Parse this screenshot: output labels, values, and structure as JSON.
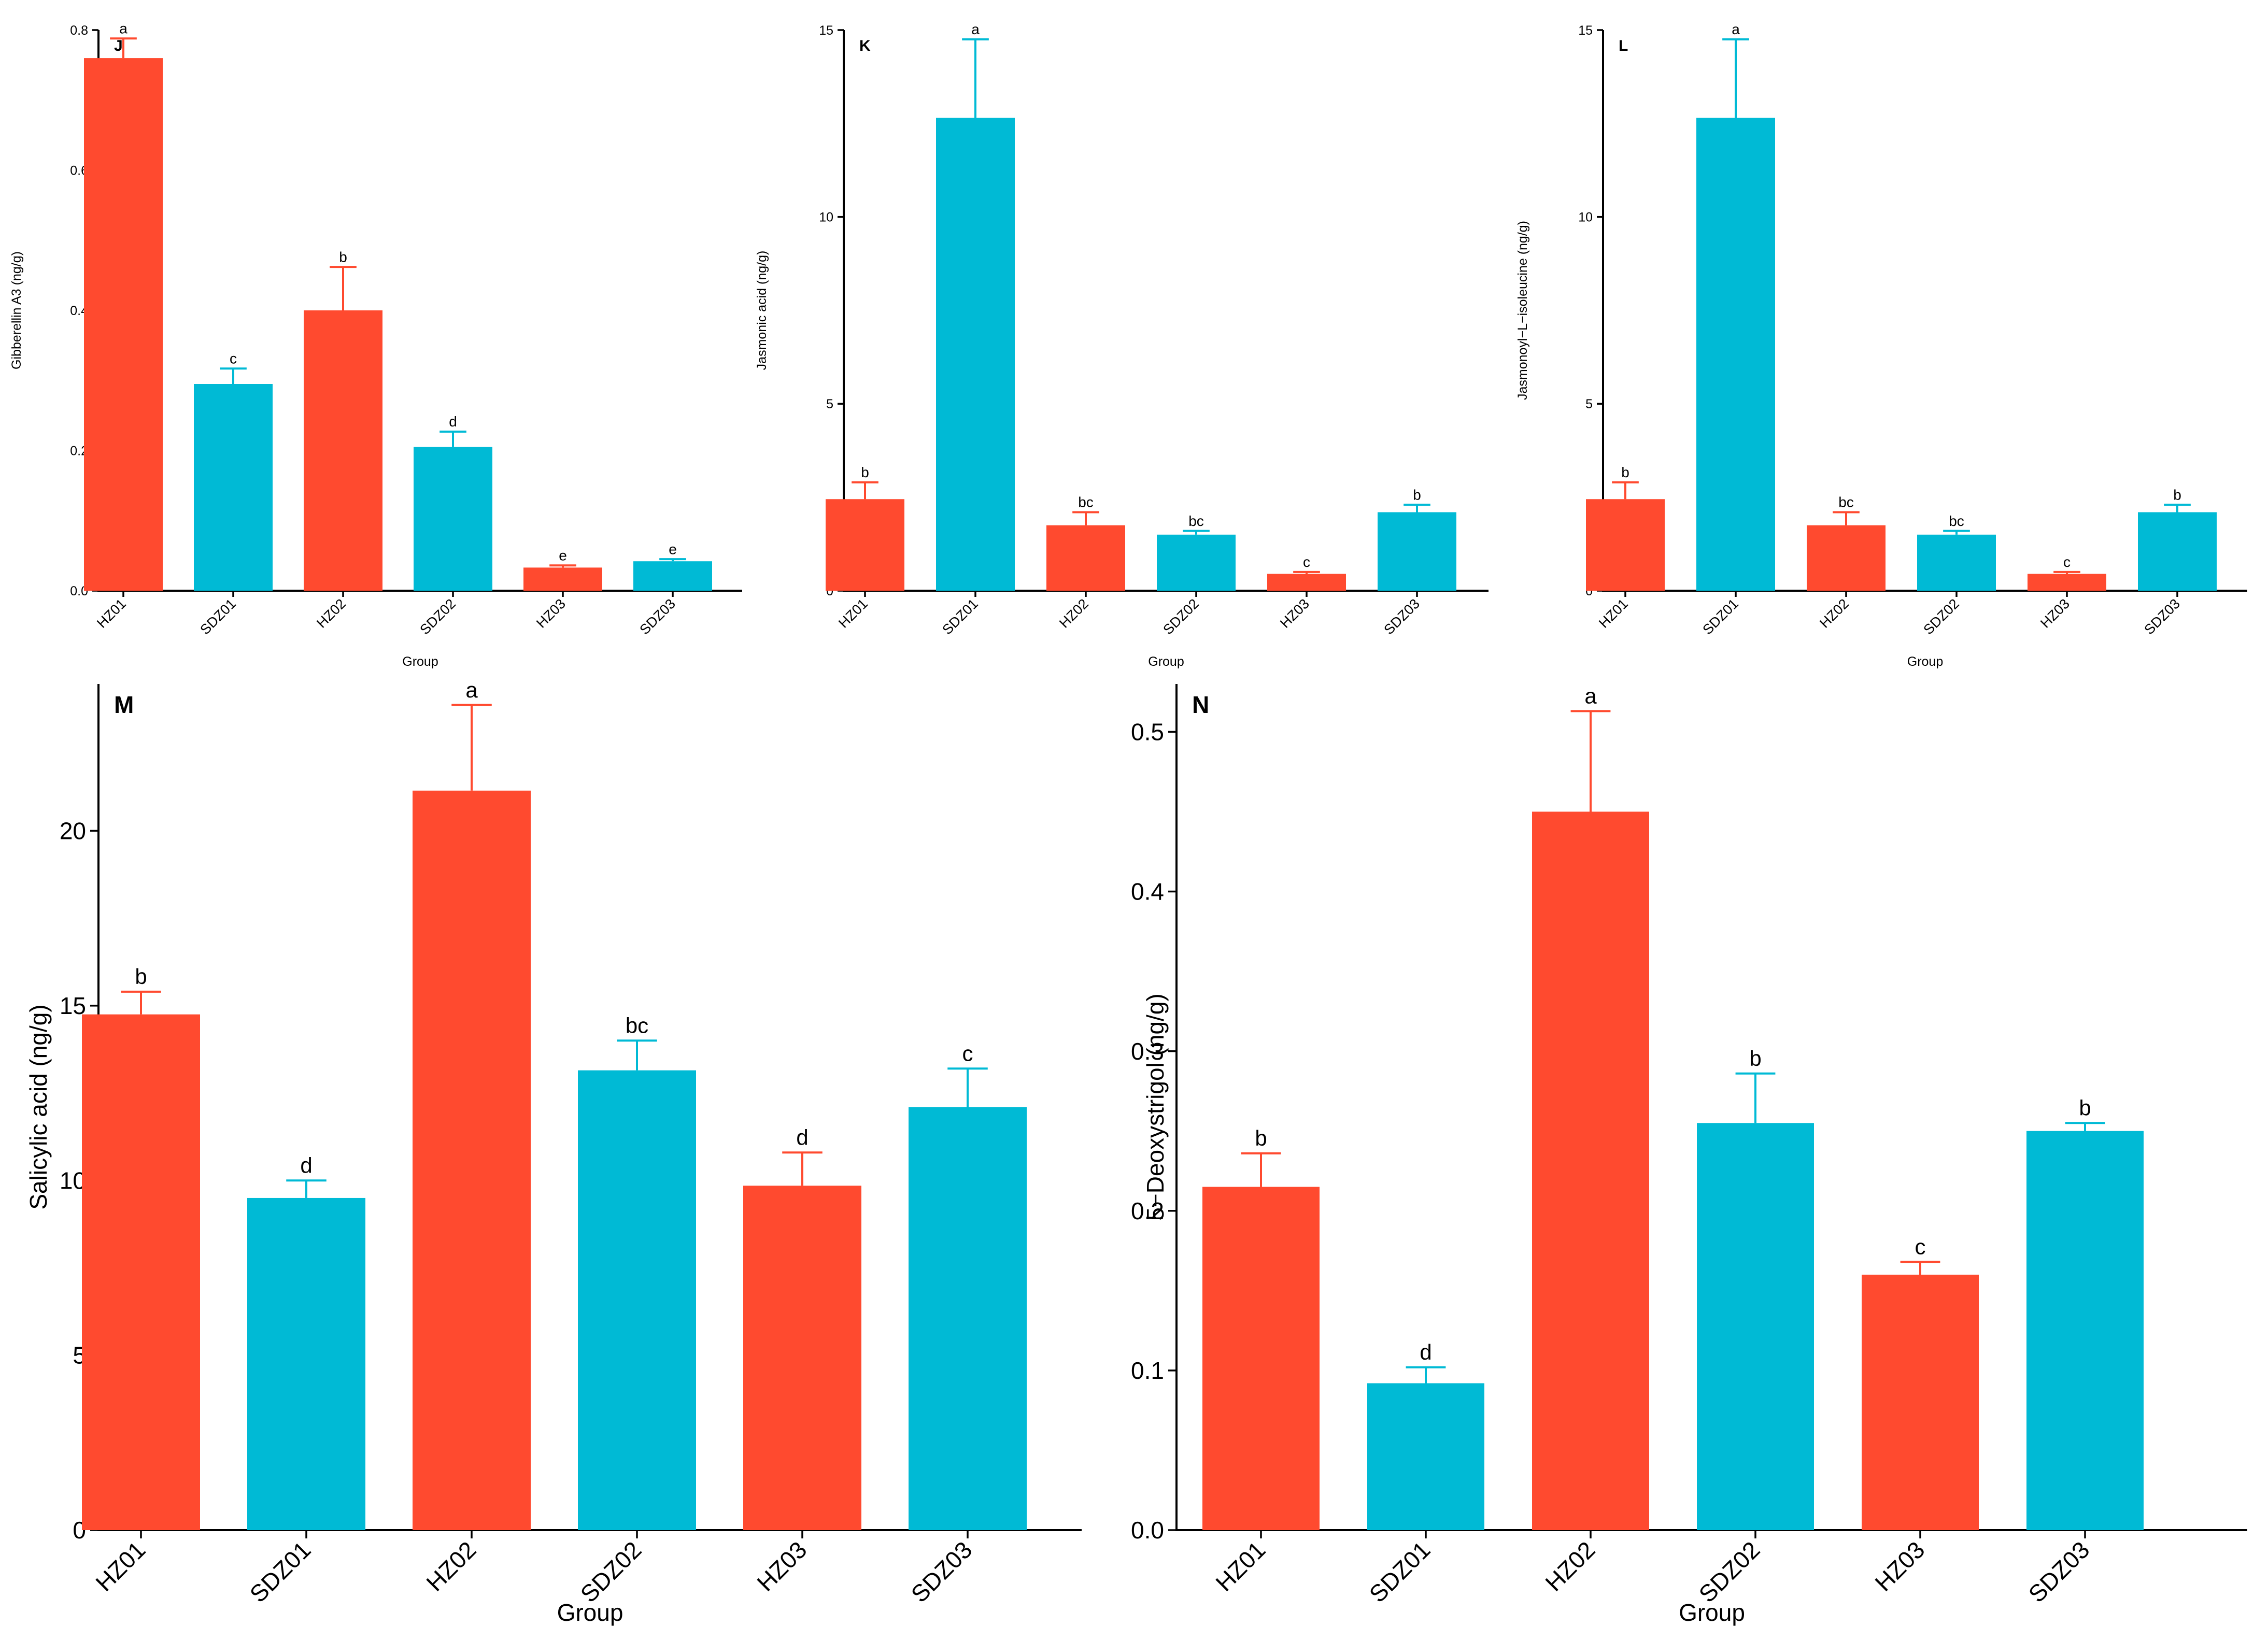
{
  "colors": {
    "hz": "#FF4A2F",
    "sdz": "#00BAD5",
    "axis": "#000000"
  },
  "chart_data": [
    {
      "panel": "J",
      "type": "bar",
      "categories": [
        "HZ01",
        "SDZ01",
        "HZ02",
        "SDZ02",
        "HZ03",
        "SDZ03"
      ],
      "values": [
        0.76,
        0.295,
        0.4,
        0.205,
        0.033,
        0.042
      ],
      "errors": [
        0.028,
        0.022,
        0.062,
        0.022,
        0.003,
        0.003
      ],
      "letters": [
        "a",
        "c",
        "b",
        "d",
        "e",
        "e"
      ],
      "ylabel": "Gibberellin A3 (ng/g)",
      "xlabel": "Group",
      "ylim": [
        0,
        0.8
      ],
      "yticks": [
        "0.0",
        "0.2",
        "0.4",
        "0.6",
        "0.8"
      ],
      "ytick_values": [
        0,
        0.2,
        0.4,
        0.6,
        0.8
      ]
    },
    {
      "panel": "K",
      "type": "bar",
      "categories": [
        "HZ01",
        "SDZ01",
        "HZ02",
        "SDZ02",
        "HZ03",
        "SDZ03"
      ],
      "values": [
        2.45,
        12.65,
        1.75,
        1.5,
        0.45,
        2.1
      ],
      "errors": [
        0.45,
        2.1,
        0.35,
        0.1,
        0.05,
        0.2
      ],
      "letters": [
        "b",
        "a",
        "bc",
        "bc",
        "c",
        "b"
      ],
      "ylabel": "Jasmonic acid (ng/g)",
      "xlabel": "Group",
      "ylim": [
        0,
        15
      ],
      "yticks": [
        "0",
        "5",
        "10",
        "15"
      ],
      "ytick_values": [
        0,
        5,
        10,
        15
      ]
    },
    {
      "panel": "L",
      "type": "bar",
      "categories": [
        "HZ01",
        "SDZ01",
        "HZ02",
        "SDZ02",
        "HZ03",
        "SDZ03"
      ],
      "values": [
        2.45,
        12.65,
        1.75,
        1.5,
        0.45,
        2.1
      ],
      "errors": [
        0.45,
        2.1,
        0.35,
        0.1,
        0.05,
        0.2
      ],
      "letters": [
        "b",
        "a",
        "bc",
        "bc",
        "c",
        "b"
      ],
      "ylabel": "Jasmonoyl−L−isoleucine (ng/g)",
      "xlabel": "Group",
      "ylim": [
        0,
        15
      ],
      "yticks": [
        "0",
        "5",
        "10",
        "15"
      ],
      "ytick_values": [
        0,
        5,
        10,
        15
      ]
    },
    {
      "panel": "M",
      "type": "bar",
      "categories": [
        "HZ01",
        "SDZ01",
        "HZ02",
        "SDZ02",
        "HZ03",
        "SDZ03"
      ],
      "values": [
        14.75,
        9.5,
        21.15,
        13.15,
        9.85,
        12.1
      ],
      "errors": [
        0.65,
        0.5,
        2.45,
        0.85,
        0.95,
        1.1
      ],
      "letters": [
        "b",
        "d",
        "a",
        "bc",
        "d",
        "c"
      ],
      "ylabel": "Salicylic acid (ng/g)",
      "xlabel": "Group",
      "ylim": [
        0,
        24.2
      ],
      "yticks": [
        "0",
        "5",
        "10",
        "15",
        "20"
      ],
      "ytick_values": [
        0,
        5,
        10,
        15,
        20
      ]
    },
    {
      "panel": "N",
      "type": "bar",
      "categories": [
        "HZ01",
        "SDZ01",
        "HZ02",
        "SDZ02",
        "HZ03",
        "SDZ03"
      ],
      "values": [
        0.215,
        0.092,
        0.45,
        0.255,
        0.16,
        0.25
      ],
      "errors": [
        0.021,
        0.01,
        0.063,
        0.031,
        0.008,
        0.005
      ],
      "letters": [
        "b",
        "d",
        "a",
        "b",
        "c",
        "b"
      ],
      "ylabel": "5−Deoxystrigol (ng/g)",
      "xlabel": "Group",
      "ylim": [
        0,
        0.53
      ],
      "yticks": [
        "0.0",
        "0.1",
        "0.2",
        "0.3",
        "0.4",
        "0.5"
      ],
      "ytick_values": [
        0,
        0.1,
        0.2,
        0.3,
        0.4,
        0.5
      ]
    }
  ]
}
